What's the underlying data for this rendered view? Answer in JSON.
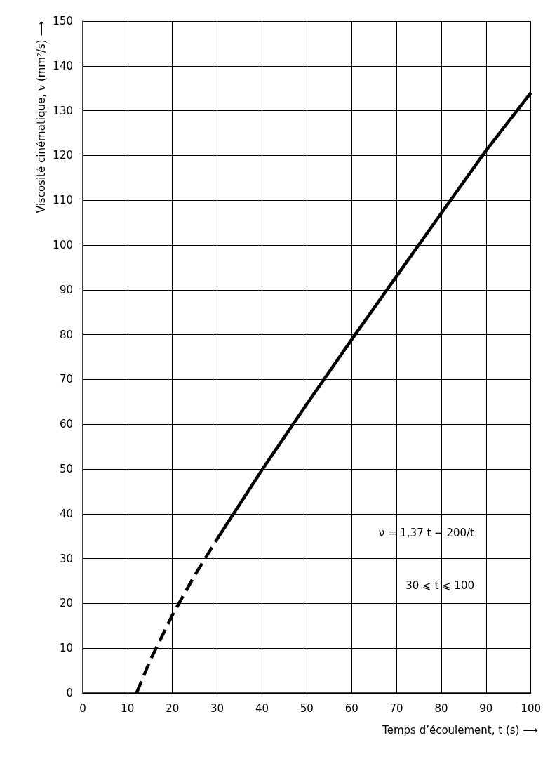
{
  "chart_data": {
    "type": "line",
    "xlabel": "Temps d’écoulement, t (s) ⟶",
    "ylabel": "Viscosité cinématique, ν (mm²/s) ⟶",
    "series": [
      {
        "color": "#000000",
        "line_style": "dashed",
        "x": [
          12,
          15,
          20,
          25,
          30
        ],
        "values": [
          0,
          7.2,
          17.4,
          26.3,
          34.4
        ]
      },
      {
        "color": "#000000",
        "line_style": "solid",
        "x": [
          30,
          40,
          50,
          60,
          70,
          80,
          90,
          100
        ],
        "values": [
          34.4,
          49.8,
          64.5,
          78.9,
          93.0,
          107.1,
          121.1,
          134
        ]
      }
    ],
    "xlim": [
      0,
      100
    ],
    "xticks": [
      0,
      10,
      20,
      30,
      40,
      50,
      60,
      70,
      80,
      90,
      100
    ],
    "ylim": [
      0,
      150
    ],
    "yticks": [
      0,
      10,
      20,
      30,
      40,
      50,
      60,
      70,
      80,
      90,
      100,
      110,
      120,
      130,
      140,
      150
    ],
    "grid": true,
    "marker": "none",
    "annotations": [
      "ν = 1,37 t − 200/t",
      "30 ⩽ t ⩽ 100"
    ]
  }
}
